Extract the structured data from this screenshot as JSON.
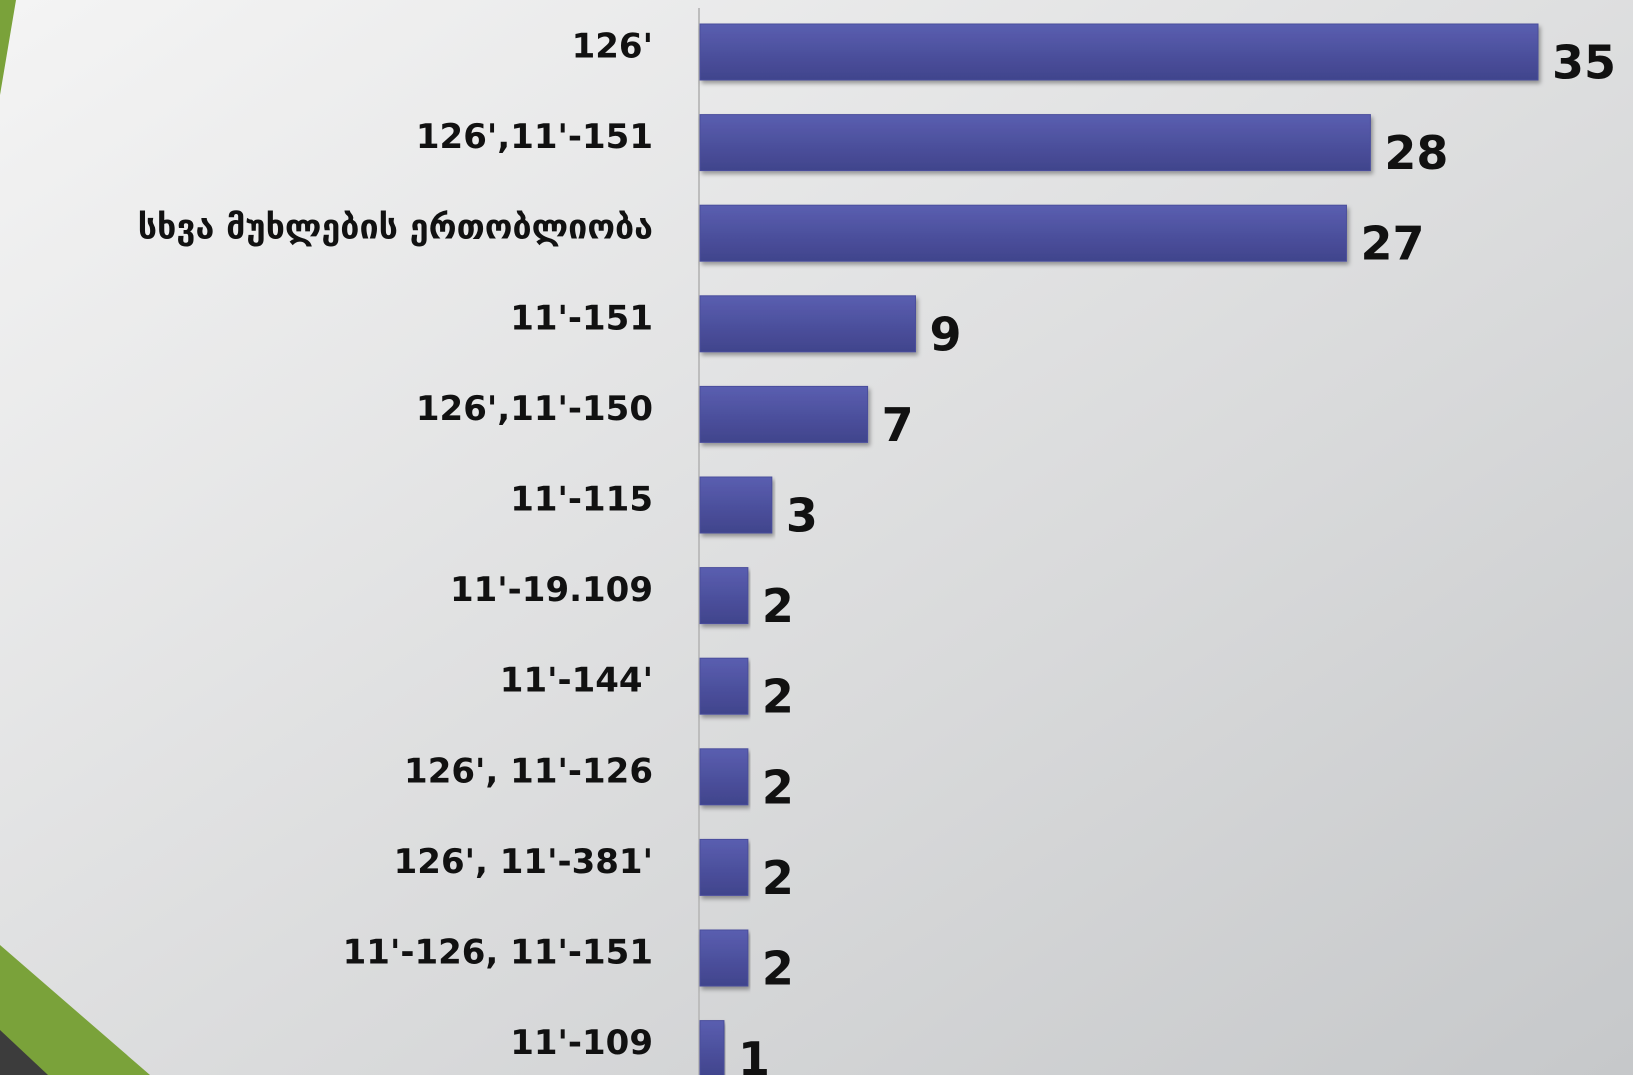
{
  "chart_data": {
    "type": "bar",
    "orientation": "horizontal",
    "categories": [
      "126'",
      "126',11'-151",
      "სხვა მუხლების ერთობლიობა",
      "11'-151",
      "126',11'-150",
      "11'-115",
      "11'-19.109",
      "11'-144'",
      "126', 11'-126",
      "126', 11'-381'",
      "11'-126, 11'-151",
      "11'-109"
    ],
    "values": [
      35,
      28,
      27,
      9,
      7,
      3,
      2,
      2,
      2,
      2,
      2,
      1
    ],
    "color": "#4a4e9c"
  }
}
